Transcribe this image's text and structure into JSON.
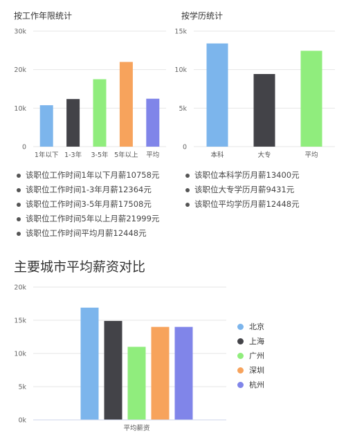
{
  "colors": {
    "blue": "#7cb5ec",
    "dark": "#434348",
    "green": "#90ed7d",
    "orange": "#f7a35c",
    "purple": "#8085e9",
    "grid": "#e6e6e6",
    "axis_text": "#666666"
  },
  "titles": {
    "by_years": "按工作年限统计",
    "by_education": "按学历统计",
    "city_section": "主要城市平均薪资对比"
  },
  "stats": {
    "years": [
      "该职位工作时间1年以下月薪10758元",
      "该职位工作时间1-3年月薪12364元",
      "该职位工作时间3-5年月薪17508元",
      "该职位工作时间5年以上月薪21999元",
      "该职位工作时间平均月薪12448元"
    ],
    "education": [
      "该职位本科学历月薪13400元",
      "该职位大专学历月薪9431元",
      "该职位平均学历月薪12448元"
    ]
  },
  "chart_data": [
    {
      "id": "years",
      "type": "bar",
      "title": "按工作年限统计",
      "categories": [
        "1年以下",
        "1-3年",
        "3-5年",
        "5年以上",
        "平均"
      ],
      "values": [
        10758,
        12364,
        17508,
        21999,
        12448
      ],
      "colors": [
        "#7cb5ec",
        "#434348",
        "#90ed7d",
        "#f7a35c",
        "#8085e9"
      ],
      "ylim": [
        0,
        30000
      ],
      "yticks": [
        0,
        10000,
        20000,
        30000
      ],
      "ytick_labels": [
        "0",
        "10k",
        "20k",
        "30k"
      ],
      "grid": true
    },
    {
      "id": "education",
      "type": "bar",
      "title": "按学历统计",
      "categories": [
        "本科",
        "大专",
        "平均"
      ],
      "values": [
        13400,
        9431,
        12448
      ],
      "colors": [
        "#7cb5ec",
        "#434348",
        "#90ed7d"
      ],
      "ylim": [
        0,
        15000
      ],
      "yticks": [
        0,
        5000,
        10000,
        15000
      ],
      "ytick_labels": [
        "0",
        "5k",
        "10k",
        "15k"
      ],
      "grid": true
    },
    {
      "id": "cities",
      "type": "bar",
      "title": "主要城市平均薪资对比",
      "categories": [
        "平均薪资"
      ],
      "series": [
        {
          "name": "北京",
          "values": [
            16900
          ],
          "color": "#7cb5ec"
        },
        {
          "name": "上海",
          "values": [
            14900
          ],
          "color": "#434348"
        },
        {
          "name": "广州",
          "values": [
            11000
          ],
          "color": "#90ed7d"
        },
        {
          "name": "深圳",
          "values": [
            14000
          ],
          "color": "#f7a35c"
        },
        {
          "name": "杭州",
          "values": [
            14000
          ],
          "color": "#8085e9"
        }
      ],
      "ylim": [
        0,
        20000
      ],
      "yticks": [
        0,
        5000,
        10000,
        15000,
        20000
      ],
      "ytick_labels": [
        "0k",
        "5k",
        "10k",
        "15k",
        "20k"
      ],
      "grid": true,
      "legend": "right"
    }
  ]
}
